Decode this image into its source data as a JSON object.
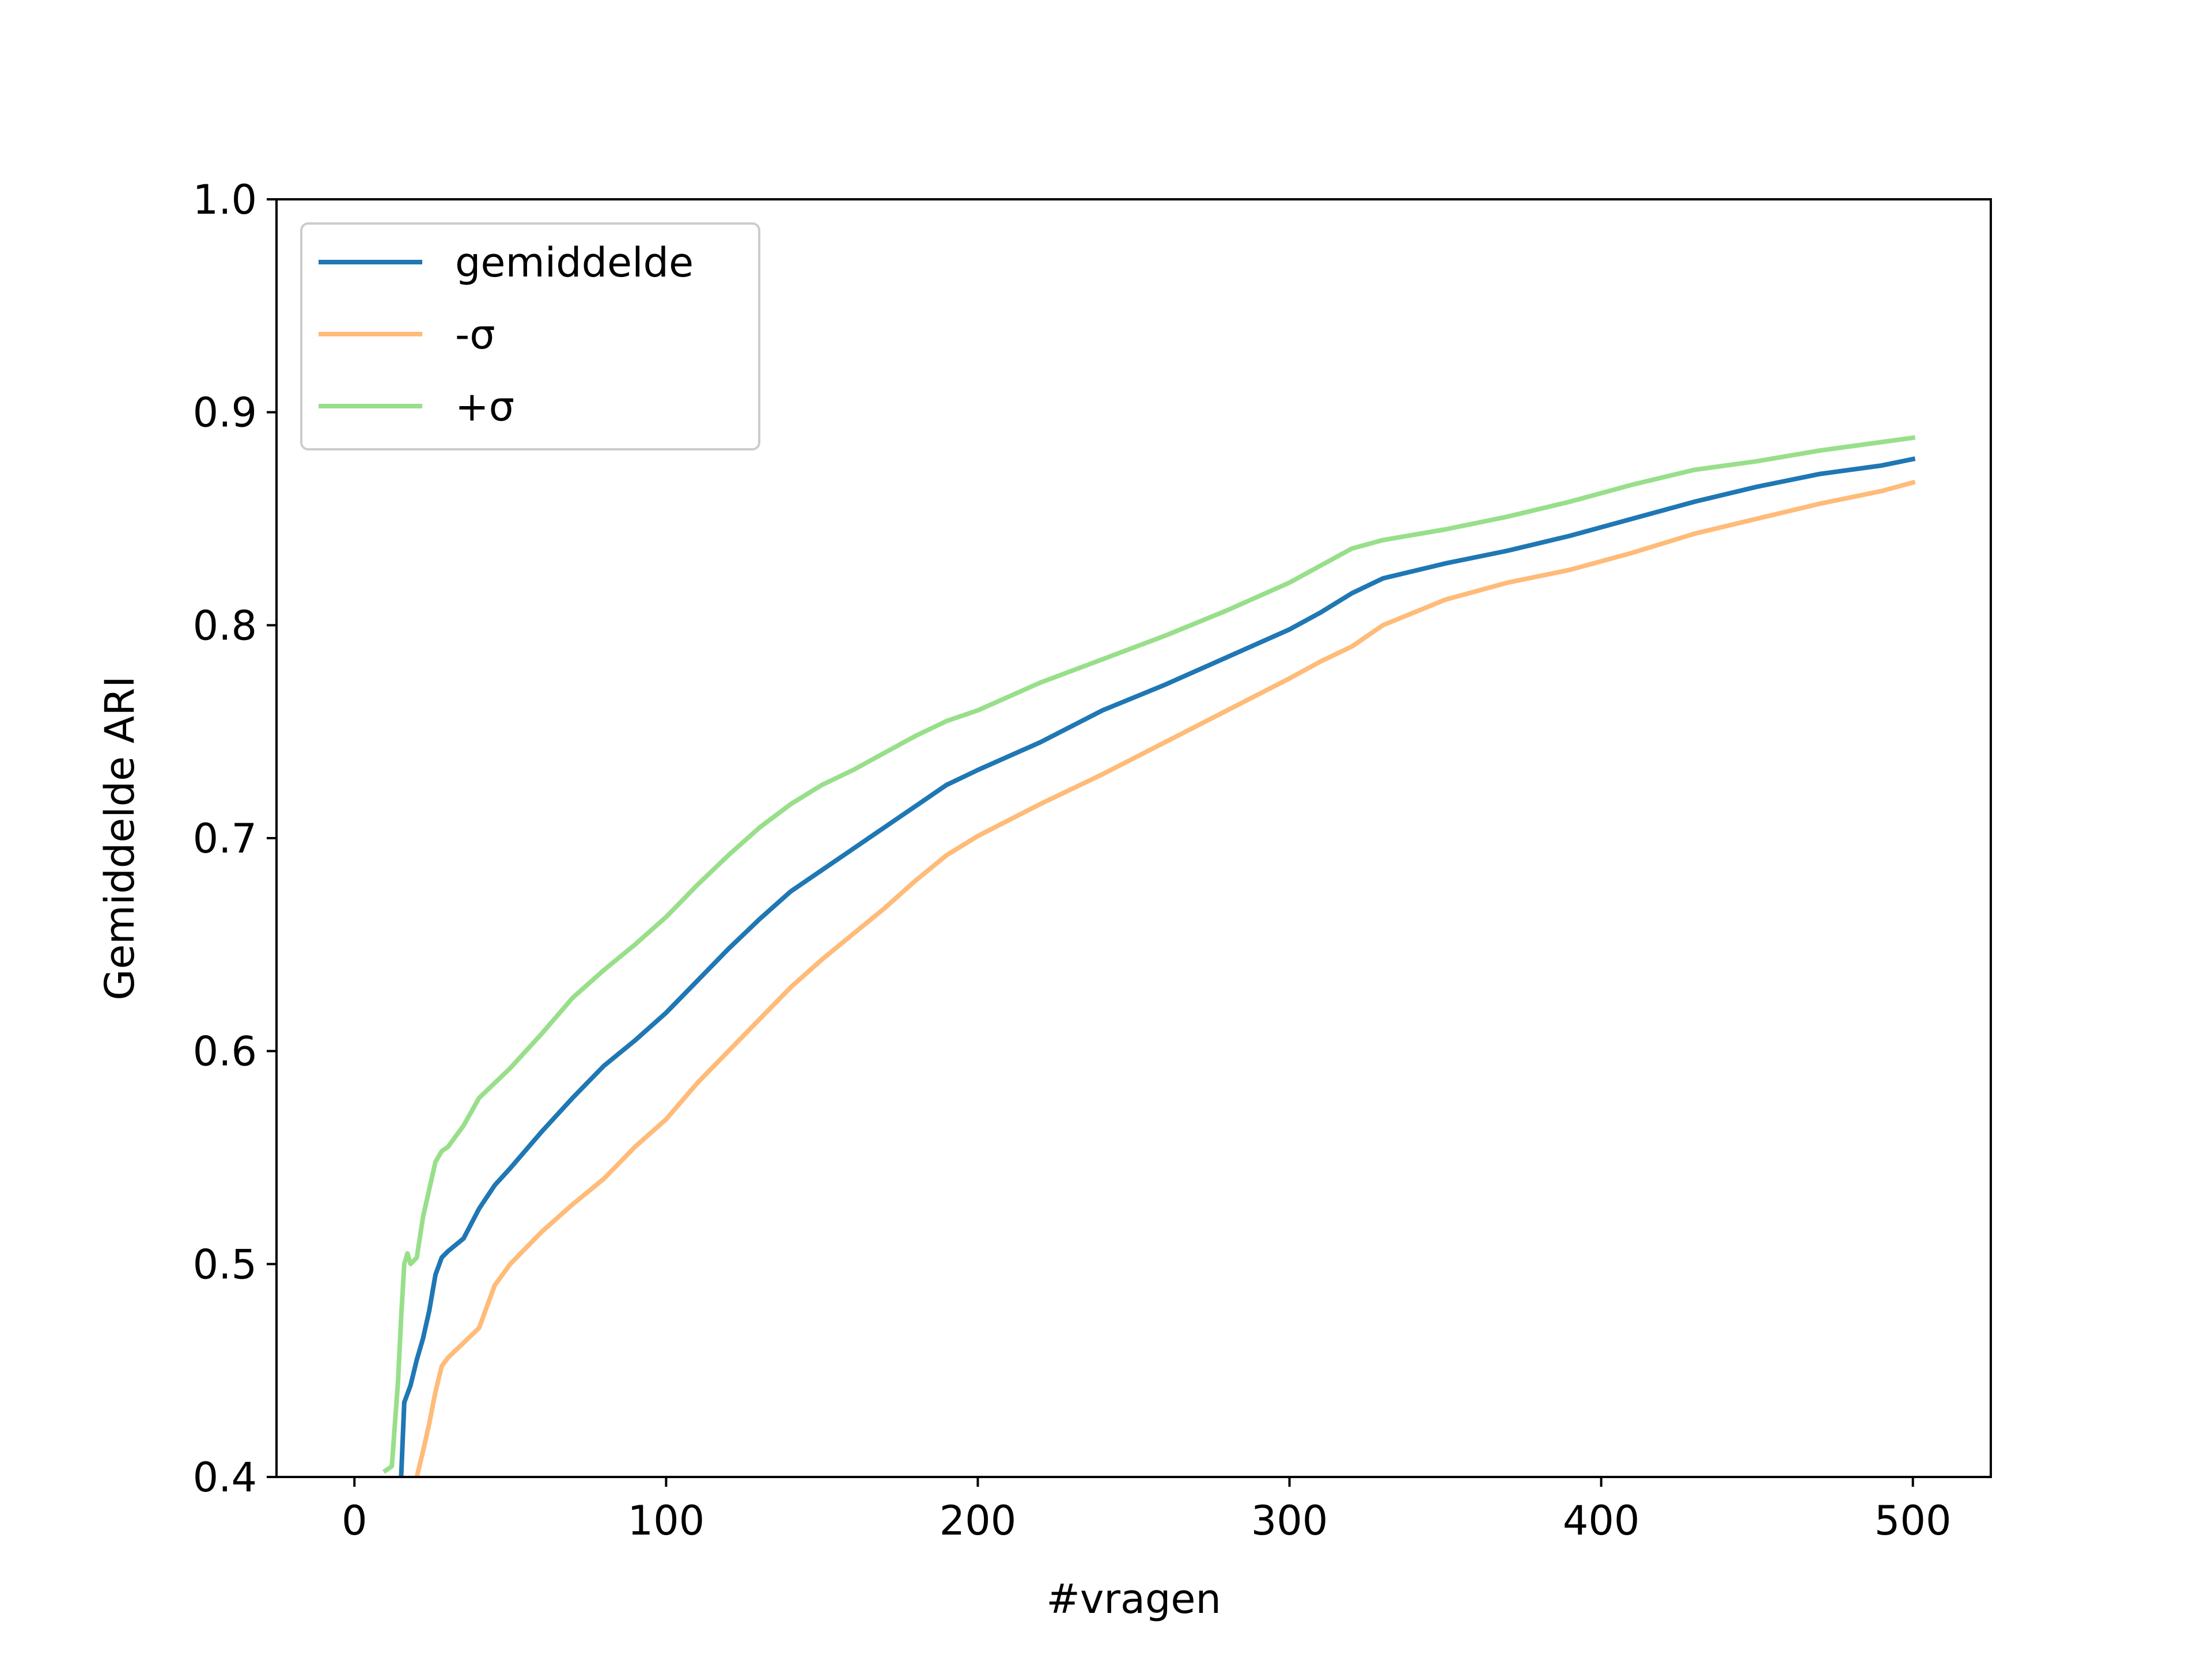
{
  "chart_data": {
    "type": "line",
    "xlabel": "#vragen",
    "ylabel": "Gemiddelde ARI",
    "xlim": [
      -25,
      525
    ],
    "ylim": [
      0.4,
      1.0
    ],
    "x_ticks": [
      0,
      100,
      200,
      300,
      400,
      500
    ],
    "x_tick_labels": [
      "0",
      "100",
      "200",
      "300",
      "400",
      "500"
    ],
    "y_ticks": [
      0.4,
      0.5,
      0.6,
      0.7,
      0.8,
      0.9,
      1.0
    ],
    "y_tick_labels": [
      "0.4",
      "0.5",
      "0.6",
      "0.7",
      "0.8",
      "0.9",
      "1.0"
    ],
    "grid": false,
    "legend_position": "top-left",
    "series": [
      {
        "name": "gemiddelde",
        "color": "#1f77b4",
        "x": [
          15,
          16,
          18,
          20,
          22,
          24,
          26,
          28,
          30,
          35,
          40,
          45,
          50,
          60,
          70,
          80,
          90,
          100,
          110,
          120,
          130,
          140,
          150,
          160,
          170,
          180,
          190,
          200,
          220,
          240,
          260,
          280,
          300,
          310,
          320,
          330,
          350,
          370,
          390,
          410,
          430,
          450,
          470,
          490,
          500
        ],
        "y": [
          0.4,
          0.435,
          0.443,
          0.455,
          0.465,
          0.478,
          0.495,
          0.503,
          0.506,
          0.512,
          0.526,
          0.537,
          0.545,
          0.562,
          0.578,
          0.593,
          0.605,
          0.618,
          0.633,
          0.648,
          0.662,
          0.675,
          0.685,
          0.695,
          0.705,
          0.715,
          0.725,
          0.732,
          0.745,
          0.76,
          0.772,
          0.785,
          0.798,
          0.806,
          0.815,
          0.822,
          0.829,
          0.835,
          0.842,
          0.85,
          0.858,
          0.865,
          0.871,
          0.875,
          0.878
        ]
      },
      {
        "name": "-σ",
        "color": "#ffbb78",
        "x": [
          20,
          22,
          24,
          26,
          28,
          30,
          35,
          40,
          42,
          45,
          50,
          60,
          70,
          80,
          90,
          100,
          110,
          120,
          130,
          140,
          150,
          160,
          170,
          180,
          190,
          200,
          220,
          240,
          260,
          280,
          300,
          310,
          320,
          330,
          350,
          370,
          390,
          410,
          430,
          450,
          470,
          490,
          500
        ],
        "y": [
          0.4,
          0.412,
          0.425,
          0.44,
          0.452,
          0.456,
          0.463,
          0.47,
          0.478,
          0.49,
          0.5,
          0.515,
          0.528,
          0.54,
          0.555,
          0.568,
          0.585,
          0.6,
          0.615,
          0.63,
          0.643,
          0.655,
          0.667,
          0.68,
          0.692,
          0.701,
          0.716,
          0.73,
          0.745,
          0.76,
          0.775,
          0.783,
          0.79,
          0.8,
          0.812,
          0.82,
          0.826,
          0.834,
          0.843,
          0.85,
          0.857,
          0.863,
          0.867
        ]
      },
      {
        "name": "+σ",
        "color": "#98df8a",
        "x": [
          10,
          12,
          14,
          15,
          16,
          17,
          18,
          20,
          22,
          24,
          26,
          28,
          30,
          35,
          40,
          45,
          50,
          60,
          70,
          80,
          90,
          100,
          110,
          120,
          130,
          140,
          150,
          160,
          170,
          180,
          190,
          200,
          220,
          240,
          260,
          280,
          300,
          310,
          320,
          330,
          350,
          370,
          390,
          410,
          430,
          450,
          470,
          490,
          500
        ],
        "y": [
          0.403,
          0.405,
          0.445,
          0.475,
          0.5,
          0.505,
          0.5,
          0.503,
          0.522,
          0.535,
          0.548,
          0.553,
          0.555,
          0.565,
          0.578,
          0.585,
          0.592,
          0.608,
          0.625,
          0.638,
          0.65,
          0.663,
          0.678,
          0.692,
          0.705,
          0.716,
          0.725,
          0.732,
          0.74,
          0.748,
          0.755,
          0.76,
          0.773,
          0.784,
          0.795,
          0.807,
          0.82,
          0.828,
          0.836,
          0.84,
          0.845,
          0.851,
          0.858,
          0.866,
          0.873,
          0.877,
          0.882,
          0.886,
          0.888
        ]
      }
    ]
  }
}
